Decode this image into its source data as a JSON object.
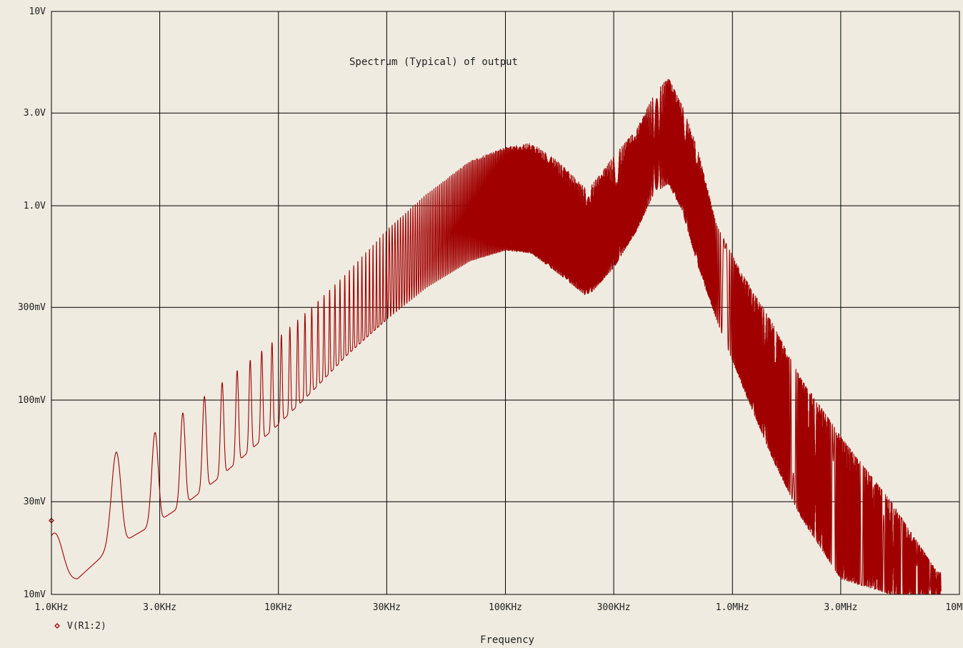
{
  "chart_data": {
    "type": "line",
    "title": "Spectrum (Typical) of output",
    "xlabel": "Frequency",
    "ylabel": "",
    "x_scale": "log",
    "y_scale": "log",
    "xlim": [
      1000,
      10000000
    ],
    "ylim": [
      0.01,
      10
    ],
    "grid": true,
    "legend_position": "bottom-left",
    "x_ticks": [
      {
        "value": 1000,
        "label": "1.0KHz"
      },
      {
        "value": 3000,
        "label": "3.0KHz"
      },
      {
        "value": 10000,
        "label": "10KHz"
      },
      {
        "value": 30000,
        "label": "30KHz"
      },
      {
        "value": 100000,
        "label": "100KHz"
      },
      {
        "value": 300000,
        "label": "300KHz"
      },
      {
        "value": 1000000,
        "label": "1.0MHz"
      },
      {
        "value": 3000000,
        "label": "3.0MHz"
      },
      {
        "value": 10000000,
        "label": "10MHz"
      }
    ],
    "y_ticks": [
      {
        "value": 10,
        "label": "10V"
      },
      {
        "value": 3,
        "label": "3.0V"
      },
      {
        "value": 1,
        "label": "1.0V"
      },
      {
        "value": 0.3,
        "label": "300mV"
      },
      {
        "value": 0.1,
        "label": "100mV"
      },
      {
        "value": 0.03,
        "label": "30mV"
      },
      {
        "value": 0.01,
        "label": "10mV"
      }
    ],
    "series": [
      {
        "name": "V(R1:2)",
        "color": "#a00000",
        "marker": "diamond",
        "upper_envelope": {
          "x": [
            1000,
            1300,
            1700,
            2300,
            3000,
            4000,
            5500,
            7500,
            10000,
            14000,
            20000,
            30000,
            45000,
            70000,
            100000,
            130000,
            170000,
            230000,
            300000,
            380000,
            450000,
            520000,
            600000,
            700000,
            850000,
            1100000,
            1500000,
            2000000,
            3000000,
            5000000,
            8000000
          ],
          "y": [
            0.02,
            0.035,
            0.05,
            0.06,
            0.07,
            0.09,
            0.12,
            0.16,
            0.21,
            0.3,
            0.45,
            0.75,
            1.15,
            1.7,
            2.0,
            2.1,
            1.7,
            1.2,
            1.8,
            2.5,
            3.7,
            4.6,
            3.3,
            2.0,
            0.8,
            0.45,
            0.25,
            0.13,
            0.065,
            0.03,
            0.013
          ]
        },
        "lower_envelope": {
          "x": [
            1000,
            1300,
            1700,
            2300,
            3000,
            4000,
            5500,
            7500,
            10000,
            14000,
            20000,
            30000,
            45000,
            70000,
            100000,
            130000,
            170000,
            230000,
            300000,
            380000,
            450000,
            520000,
            600000,
            700000,
            850000,
            1100000,
            1500000,
            2000000,
            3000000,
            5000000,
            8000000
          ],
          "y": [
            0.012,
            0.012,
            0.016,
            0.02,
            0.024,
            0.03,
            0.04,
            0.055,
            0.075,
            0.11,
            0.17,
            0.26,
            0.38,
            0.52,
            0.59,
            0.57,
            0.45,
            0.34,
            0.48,
            0.75,
            1.15,
            1.3,
            0.95,
            0.5,
            0.26,
            0.12,
            0.05,
            0.025,
            0.012,
            0.01,
            0.01
          ]
        }
      }
    ]
  }
}
